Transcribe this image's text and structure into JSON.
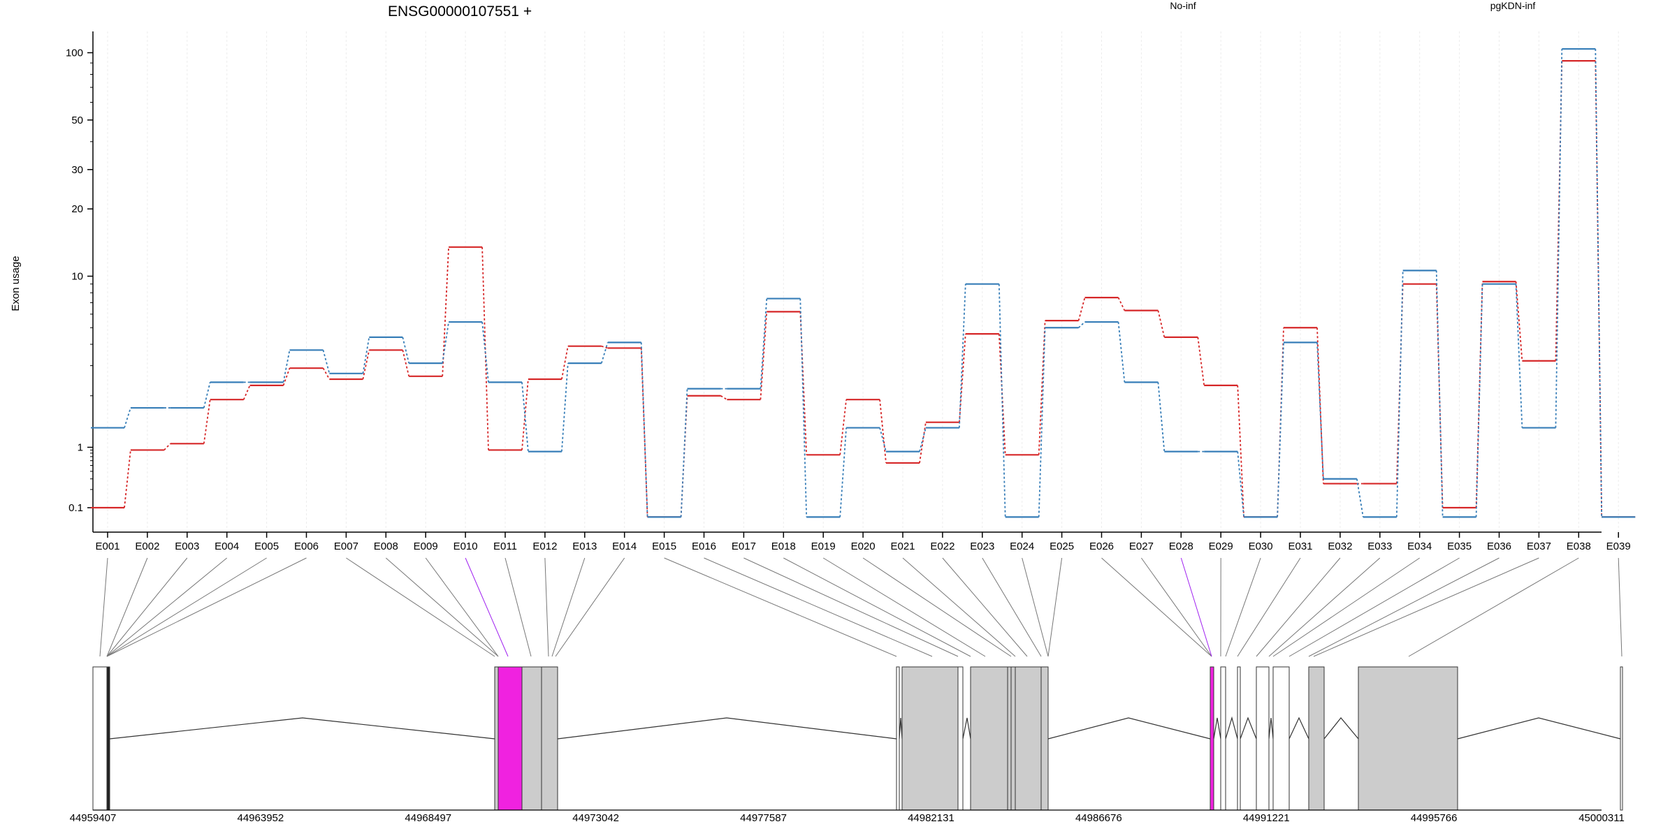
{
  "chart_data": {
    "type": "line",
    "title": "ENSG00000107551 +",
    "ylabel": "Exon usage",
    "yscale": "log",
    "ylim": [
      0.07,
      130
    ],
    "yticks": [
      "100",
      "50",
      "30",
      "20",
      "10",
      "1",
      "0.1"
    ],
    "grid": true,
    "legend_position": "top",
    "categories": [
      "E001",
      "E002",
      "E003",
      "E004",
      "E005",
      "E006",
      "E007",
      "E008",
      "E009",
      "E010",
      "E011",
      "E012",
      "E013",
      "E014",
      "E015",
      "E016",
      "E017",
      "E018",
      "E019",
      "E020",
      "E021",
      "E022",
      "E023",
      "E024",
      "E025",
      "E026",
      "E027",
      "E028",
      "E029",
      "E030",
      "E031",
      "E032",
      "E033",
      "E034",
      "E035",
      "E036",
      "E037",
      "E038",
      "E039"
    ],
    "series": [
      {
        "name": "No-inf",
        "color": "#d62728",
        "values": [
          0.1,
          0.9,
          1.05,
          1.9,
          2.3,
          2.9,
          2.5,
          3.7,
          2.6,
          13.5,
          0.9,
          2.5,
          3.9,
          3.8,
          0.07,
          2.0,
          1.9,
          6.2,
          0.75,
          1.9,
          0.55,
          1.4,
          4.6,
          0.75,
          5.5,
          7.5,
          6.3,
          4.4,
          2.3,
          0.07,
          5.0,
          0.25,
          0.25,
          9.0,
          0.1,
          9.3,
          3.2,
          92,
          0.07
        ]
      },
      {
        "name": "pgKDN-inf",
        "color": "#377eb8",
        "values": [
          1.3,
          1.7,
          1.7,
          2.4,
          2.4,
          3.7,
          2.7,
          4.4,
          3.1,
          5.4,
          2.4,
          0.85,
          3.1,
          4.1,
          0.07,
          2.2,
          2.2,
          7.4,
          0.07,
          1.3,
          0.85,
          1.3,
          9.0,
          0.07,
          5.0,
          5.4,
          2.4,
          0.85,
          0.85,
          0.07,
          4.1,
          0.3,
          0.07,
          10.6,
          0.07,
          9.0,
          1.3,
          104,
          0.07
        ]
      }
    ],
    "gene_model": {
      "coordinate_labels": [
        "44959407",
        "44963952",
        "44968497",
        "44973042",
        "44977587",
        "44982131",
        "44986676",
        "44991221",
        "44995766",
        "45000311"
      ],
      "highlight_color": "#f022e0",
      "highlighted_exons": [
        "E010",
        "E028"
      ]
    }
  }
}
